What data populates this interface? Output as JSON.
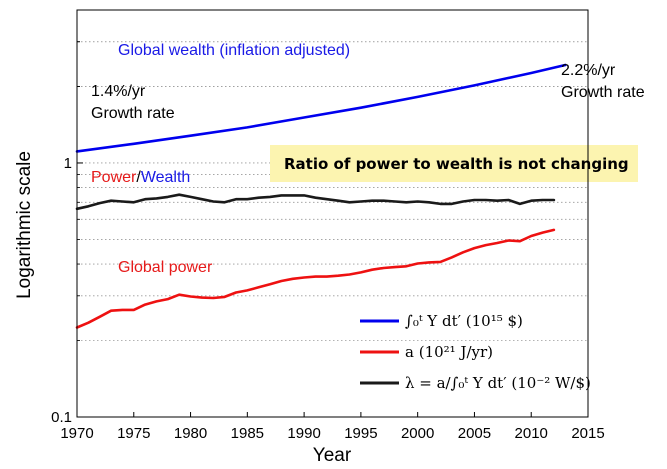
{
  "chart_data": {
    "type": "line",
    "xlabel": "Year",
    "ylabel": "Logarithmic scale",
    "xlim": [
      1970,
      2015
    ],
    "ylim": [
      0.1,
      4
    ],
    "yscale": "log",
    "grid": "horizontal-dotted",
    "x_ticks": [
      "1970",
      "1975",
      "1980",
      "1985",
      "1990",
      "1995",
      "2000",
      "2005",
      "2010",
      "2015"
    ],
    "y_ticks": [
      {
        "value": 1,
        "label": "1"
      },
      {
        "value": 0.1,
        "label": "0.1"
      }
    ],
    "legend": {
      "placement": "bottom-right",
      "entries": [
        {
          "series": "wealth",
          "label": "∫₀ᵗ Y dt′ (10¹⁵ $)"
        },
        {
          "series": "power",
          "label": "a (10²¹ J/yr)"
        },
        {
          "series": "ratio",
          "label": "λ = a/∫₀ᵗ Y dt′ (10⁻² W/$)"
        }
      ]
    },
    "annotations": {
      "wealth_title": "Global wealth (inflation adjusted)",
      "rate_left_value": "1.4%/yr",
      "rate_left_label": "Growth rate",
      "rate_right_value": "2.2%/yr",
      "rate_right_label": "Growth rate",
      "ratio_title_power": "Power",
      "ratio_title_slash": "/",
      "ratio_title_wealth": "Wealth",
      "power_title": "Global power",
      "callout": "Ratio of power to wealth is not changing"
    },
    "series": [
      {
        "id": "wealth",
        "color": "#0000ee",
        "x": [
          1970,
          1975,
          1980,
          1985,
          1990,
          1995,
          2000,
          2005,
          2010,
          2013
        ],
        "values": [
          1.11,
          1.19,
          1.28,
          1.38,
          1.51,
          1.65,
          1.82,
          2.02,
          2.26,
          2.43
        ]
      },
      {
        "id": "power",
        "color": "#ee1111",
        "x": [
          1970,
          1971,
          1972,
          1973,
          1974,
          1975,
          1976,
          1977,
          1978,
          1979,
          1980,
          1981,
          1982,
          1983,
          1984,
          1985,
          1986,
          1987,
          1988,
          1989,
          1990,
          1991,
          1992,
          1993,
          1994,
          1995,
          1996,
          1997,
          1998,
          1999,
          2000,
          2001,
          2002,
          2003,
          2004,
          2005,
          2006,
          2007,
          2008,
          2009,
          2010,
          2011,
          2012
        ],
        "values": [
          0.225,
          0.235,
          0.248,
          0.262,
          0.264,
          0.264,
          0.277,
          0.285,
          0.291,
          0.303,
          0.298,
          0.295,
          0.294,
          0.297,
          0.309,
          0.315,
          0.324,
          0.333,
          0.343,
          0.35,
          0.354,
          0.357,
          0.357,
          0.36,
          0.364,
          0.371,
          0.38,
          0.386,
          0.389,
          0.392,
          0.402,
          0.406,
          0.408,
          0.425,
          0.445,
          0.462,
          0.475,
          0.484,
          0.495,
          0.492,
          0.516,
          0.532,
          0.545
        ]
      },
      {
        "id": "ratio",
        "color": "#1a1a1a",
        "x": [
          1970,
          1971,
          1972,
          1973,
          1974,
          1975,
          1976,
          1977,
          1978,
          1979,
          1980,
          1981,
          1982,
          1983,
          1984,
          1985,
          1986,
          1987,
          1988,
          1989,
          1990,
          1991,
          1992,
          1993,
          1994,
          1995,
          1996,
          1997,
          1998,
          1999,
          2000,
          2001,
          2002,
          2003,
          2004,
          2005,
          2006,
          2007,
          2008,
          2009,
          2010,
          2011,
          2012
        ],
        "values": [
          0.66,
          0.675,
          0.695,
          0.71,
          0.705,
          0.7,
          0.72,
          0.725,
          0.735,
          0.75,
          0.735,
          0.72,
          0.705,
          0.7,
          0.72,
          0.72,
          0.73,
          0.735,
          0.745,
          0.745,
          0.745,
          0.73,
          0.72,
          0.71,
          0.7,
          0.705,
          0.71,
          0.71,
          0.705,
          0.7,
          0.705,
          0.7,
          0.69,
          0.69,
          0.705,
          0.715,
          0.715,
          0.71,
          0.715,
          0.69,
          0.71,
          0.715,
          0.715
        ]
      }
    ]
  }
}
